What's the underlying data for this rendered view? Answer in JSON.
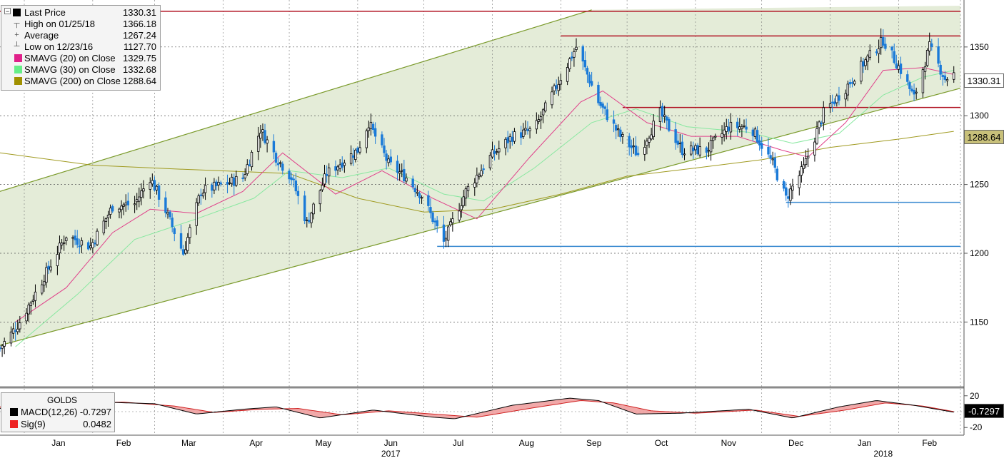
{
  "legend": {
    "items": [
      {
        "label": "Last Price",
        "value": "1330.31",
        "icon": "black-square",
        "color": "#000000"
      },
      {
        "label": "High on 01/25/18",
        "value": "1366.18",
        "icon": "high-marker",
        "color": "#777777"
      },
      {
        "label": "Average",
        "value": "1267.24",
        "icon": "average-marker",
        "color": "#777777"
      },
      {
        "label": "Low on 12/23/16",
        "value": "1127.70",
        "icon": "low-marker",
        "color": "#777777"
      },
      {
        "label": "SMAVG (20) on Close",
        "value": "1329.75",
        "icon": "pink-square",
        "color": "#e0208a"
      },
      {
        "label": "SMAVG (30) on Close",
        "value": "1332.68",
        "icon": "green-square",
        "color": "#66ee88"
      },
      {
        "label": "SMAVG (200) on Close",
        "value": "1288.64",
        "icon": "olive-square",
        "color": "#a09000"
      }
    ]
  },
  "price_tags": {
    "last": {
      "text": "1330.31",
      "bg": "#ffffff",
      "fg": "#000000"
    },
    "sma200": {
      "text": "1288.64",
      "bg": "#c8c07a",
      "fg": "#000000"
    }
  },
  "macd_panel": {
    "title": "GOLDS",
    "items": [
      {
        "label": "MACD(12,26)",
        "value": "-0.7297",
        "color": "#000000"
      },
      {
        "label": "Sig(9)",
        "value": "0.0482",
        "color": "#ee2222"
      }
    ],
    "tag": {
      "text": "-0.7297",
      "bg": "#000000",
      "fg": "#ffffff"
    }
  },
  "colors": {
    "channel_fill": "#e4ecd8",
    "channel_line": "#7a9a2a",
    "resistance": "#b01020",
    "support": "#3a8ad0",
    "up_candle": "#000000",
    "down_candle": "#1a7ad8",
    "sma20": "#e0408a",
    "sma30": "#88e8a0",
    "sma200": "#a09a20"
  },
  "chart_data": {
    "type": "candlestick",
    "y_axis": {
      "ticks": [
        1150,
        1200,
        1250,
        1300,
        1350
      ],
      "range": [
        1103,
        1380
      ],
      "side": "right"
    },
    "x_axis": {
      "months": [
        "Jan",
        "Feb",
        "Mar",
        "Apr",
        "May",
        "Jun",
        "Jul",
        "Aug",
        "Sep",
        "Oct",
        "Nov",
        "Dec",
        "Jan",
        "Feb"
      ],
      "years": [
        "2017",
        "2018"
      ],
      "range": [
        "2016-12-21",
        "2018-03-01"
      ]
    },
    "last_price": 1330.31,
    "high": {
      "date": "2018-01-25",
      "value": 1366.18
    },
    "low": {
      "date": "2016-12-23",
      "value": 1127.7
    },
    "average": 1267.24,
    "price_path": [
      [
        "2016-12-21",
        1131
      ],
      [
        "2016-12-30",
        1150
      ],
      [
        "2017-01-10",
        1183
      ],
      [
        "2017-01-20",
        1213
      ],
      [
        "2017-01-31",
        1205
      ],
      [
        "2017-02-10",
        1234
      ],
      [
        "2017-02-20",
        1236
      ],
      [
        "2017-02-27",
        1255
      ],
      [
        "2017-03-05",
        1235
      ],
      [
        "2017-03-14",
        1200
      ],
      [
        "2017-03-22",
        1245
      ],
      [
        "2017-04-01",
        1250
      ],
      [
        "2017-04-10",
        1255
      ],
      [
        "2017-04-18",
        1290
      ],
      [
        "2017-04-25",
        1270
      ],
      [
        "2017-05-02",
        1255
      ],
      [
        "2017-05-09",
        1222
      ],
      [
        "2017-05-18",
        1258
      ],
      [
        "2017-06-01",
        1275
      ],
      [
        "2017-06-06",
        1295
      ],
      [
        "2017-06-15",
        1265
      ],
      [
        "2017-06-23",
        1255
      ],
      [
        "2017-06-30",
        1242
      ],
      [
        "2017-07-10",
        1208
      ],
      [
        "2017-07-20",
        1245
      ],
      [
        "2017-07-31",
        1270
      ],
      [
        "2017-08-10",
        1285
      ],
      [
        "2017-08-20",
        1290
      ],
      [
        "2017-08-28",
        1315
      ],
      [
        "2017-09-08",
        1350
      ],
      [
        "2017-09-18",
        1310
      ],
      [
        "2017-09-28",
        1285
      ],
      [
        "2017-10-06",
        1272
      ],
      [
        "2017-10-16",
        1302
      ],
      [
        "2017-10-26",
        1275
      ],
      [
        "2017-11-06",
        1275
      ],
      [
        "2017-11-16",
        1292
      ],
      [
        "2017-11-26",
        1292
      ],
      [
        "2017-12-06",
        1265
      ],
      [
        "2017-12-12",
        1240
      ],
      [
        "2017-12-20",
        1262
      ],
      [
        "2017-12-29",
        1302
      ],
      [
        "2018-01-08",
        1320
      ],
      [
        "2018-01-16",
        1338
      ],
      [
        "2018-01-25",
        1355
      ],
      [
        "2018-02-02",
        1333
      ],
      [
        "2018-02-08",
        1313
      ],
      [
        "2018-02-15",
        1350
      ],
      [
        "2018-02-22",
        1327
      ],
      [
        "2018-02-26",
        1330
      ]
    ],
    "sma20_path": [
      [
        "2016-12-28",
        1150
      ],
      [
        "2017-01-20",
        1175
      ],
      [
        "2017-02-10",
        1215
      ],
      [
        "2017-02-27",
        1232
      ],
      [
        "2017-03-20",
        1229
      ],
      [
        "2017-04-10",
        1245
      ],
      [
        "2017-04-28",
        1273
      ],
      [
        "2017-05-22",
        1243
      ],
      [
        "2017-06-12",
        1260
      ],
      [
        "2017-07-05",
        1240
      ],
      [
        "2017-07-25",
        1225
      ],
      [
        "2017-08-18",
        1270
      ],
      [
        "2017-09-10",
        1310
      ],
      [
        "2017-09-20",
        1318
      ],
      [
        "2017-10-10",
        1295
      ],
      [
        "2017-10-30",
        1285
      ],
      [
        "2017-11-20",
        1285
      ],
      [
        "2017-12-10",
        1275
      ],
      [
        "2017-12-22",
        1270
      ],
      [
        "2018-01-08",
        1295
      ],
      [
        "2018-01-25",
        1333
      ],
      [
        "2018-02-12",
        1335
      ],
      [
        "2018-02-26",
        1330
      ]
    ],
    "sma30_path": [
      [
        "2016-12-28",
        1132
      ],
      [
        "2017-01-25",
        1170
      ],
      [
        "2017-02-20",
        1210
      ],
      [
        "2017-03-20",
        1225
      ],
      [
        "2017-04-15",
        1240
      ],
      [
        "2017-05-01",
        1260
      ],
      [
        "2017-05-25",
        1255
      ],
      [
        "2017-06-15",
        1262
      ],
      [
        "2017-07-10",
        1243
      ],
      [
        "2017-07-28",
        1238
      ],
      [
        "2017-08-20",
        1262
      ],
      [
        "2017-09-15",
        1295
      ],
      [
        "2017-10-05",
        1305
      ],
      [
        "2017-10-28",
        1292
      ],
      [
        "2017-11-25",
        1288
      ],
      [
        "2017-12-15",
        1280
      ],
      [
        "2018-01-05",
        1287
      ],
      [
        "2018-01-25",
        1315
      ],
      [
        "2018-02-12",
        1328
      ],
      [
        "2018-02-26",
        1333
      ]
    ],
    "sma200_path": [
      [
        "2016-12-21",
        1273
      ],
      [
        "2017-02-01",
        1264
      ],
      [
        "2017-03-15",
        1261
      ],
      [
        "2017-05-01",
        1258
      ],
      [
        "2017-06-01",
        1240
      ],
      [
        "2017-07-01",
        1230
      ],
      [
        "2017-08-01",
        1232
      ],
      [
        "2017-09-01",
        1243
      ],
      [
        "2017-10-01",
        1256
      ],
      [
        "2017-11-01",
        1262
      ],
      [
        "2017-12-01",
        1268
      ],
      [
        "2018-01-01",
        1277
      ],
      [
        "2018-02-01",
        1283
      ],
      [
        "2018-02-26",
        1288.64
      ]
    ],
    "channel": {
      "upper": [
        [
          "2016-12-21",
          1245
        ],
        [
          "2017-09-15",
          1377
        ]
      ],
      "lower": [
        [
          "2016-12-21",
          1133
        ],
        [
          "2018-03-01",
          1320
        ]
      ]
    },
    "horizontal_levels": [
      {
        "kind": "resistance",
        "value": 1376,
        "from": "2016-12-21",
        "to": "2018-03-01"
      },
      {
        "kind": "resistance",
        "value": 1358,
        "from": "2017-09-01",
        "to": "2018-03-01"
      },
      {
        "kind": "resistance",
        "value": 1306,
        "from": "2017-09-29",
        "to": "2018-03-01"
      },
      {
        "kind": "support",
        "value": 1237,
        "from": "2017-12-12",
        "to": "2018-03-01"
      },
      {
        "kind": "support",
        "value": 1205,
        "from": "2017-07-07",
        "to": "2018-03-01"
      }
    ],
    "macd": {
      "y_axis": {
        "ticks": [
          20,
          -20
        ],
        "range": [
          -27,
          27
        ]
      },
      "macd_path": [
        [
          "2016-12-21",
          4
        ],
        [
          "2017-01-15",
          10
        ],
        [
          "2017-02-05",
          12
        ],
        [
          "2017-03-01",
          10
        ],
        [
          "2017-03-20",
          -3
        ],
        [
          "2017-04-10",
          3
        ],
        [
          "2017-04-25",
          6
        ],
        [
          "2017-05-15",
          -8
        ],
        [
          "2017-06-08",
          2
        ],
        [
          "2017-07-05",
          -7
        ],
        [
          "2017-07-15",
          -9
        ],
        [
          "2017-08-10",
          8
        ],
        [
          "2017-09-05",
          17
        ],
        [
          "2017-09-18",
          14
        ],
        [
          "2017-10-05",
          -3
        ],
        [
          "2017-10-25",
          -2
        ],
        [
          "2017-11-25",
          3
        ],
        [
          "2017-12-15",
          -8
        ],
        [
          "2018-01-05",
          6
        ],
        [
          "2018-01-22",
          14
        ],
        [
          "2018-02-08",
          8
        ],
        [
          "2018-02-26",
          -0.73
        ]
      ],
      "signal_path": [
        [
          "2016-12-21",
          6
        ],
        [
          "2017-01-20",
          10
        ],
        [
          "2017-02-15",
          12
        ],
        [
          "2017-03-10",
          7
        ],
        [
          "2017-03-28",
          -1
        ],
        [
          "2017-04-18",
          3
        ],
        [
          "2017-05-05",
          4
        ],
        [
          "2017-05-25",
          -4
        ],
        [
          "2017-06-15",
          1
        ],
        [
          "2017-07-10",
          -4
        ],
        [
          "2017-07-25",
          -7
        ],
        [
          "2017-08-20",
          5
        ],
        [
          "2017-09-10",
          14
        ],
        [
          "2017-09-25",
          11
        ],
        [
          "2017-10-12",
          1
        ],
        [
          "2017-11-01",
          -2
        ],
        [
          "2017-11-28",
          2
        ],
        [
          "2017-12-18",
          -6
        ],
        [
          "2018-01-08",
          2
        ],
        [
          "2018-01-26",
          11
        ],
        [
          "2018-02-12",
          7
        ],
        [
          "2018-02-26",
          0.05
        ]
      ]
    }
  }
}
